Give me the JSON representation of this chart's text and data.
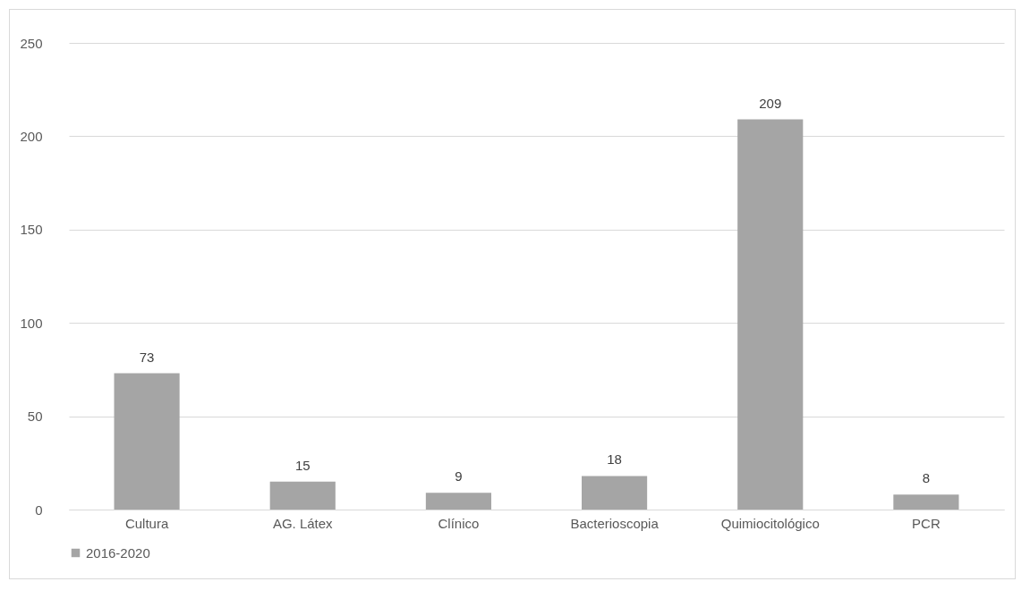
{
  "chart_data": {
    "type": "bar",
    "categories": [
      "Cultura",
      "AG. Látex",
      "Clínico",
      "Bacterioscopia",
      "Quimiocitológico",
      "PCR"
    ],
    "series": [
      {
        "name": "2016-2020",
        "color": "#a5a5a5",
        "values": [
          73,
          15,
          9,
          18,
          209,
          8
        ]
      }
    ],
    "ylim": [
      0,
      250
    ],
    "yticks": [
      0,
      50,
      100,
      150,
      200,
      250
    ],
    "grid": "y",
    "legend": "bottom",
    "data_labels": true
  }
}
